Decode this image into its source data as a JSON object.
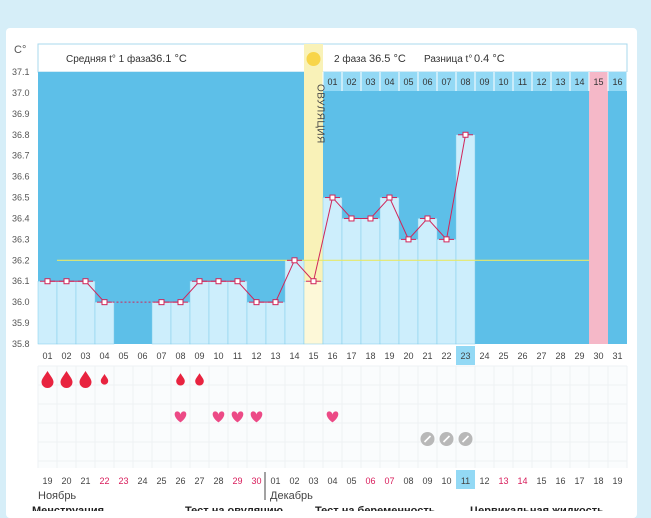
{
  "chart_data": {
    "type": "line",
    "unit_label": "C°",
    "header": {
      "phase1_label": "Средняя t° 1 фаза",
      "phase1_value": "36.1 °C",
      "phase2_label": "2 фаза",
      "phase2_value": "36.5 °C",
      "diff_label": "Разница t°",
      "diff_value": "0.4 °C"
    },
    "ylim": [
      35.8,
      37.1
    ],
    "yticks": [
      "37.1",
      "37.0",
      "36.9",
      "36.8",
      "36.7",
      "36.6",
      "36.5",
      "36.4",
      "36.3",
      "36.2",
      "36.1",
      "36.0",
      "35.9",
      "35.8"
    ],
    "cycle_days": [
      "01",
      "02",
      "03",
      "04",
      "05",
      "06",
      "07",
      "08",
      "09",
      "10",
      "11",
      "12",
      "13",
      "14",
      "15",
      "16",
      "17",
      "18",
      "19",
      "20",
      "21",
      "22",
      "23",
      "24",
      "25",
      "26",
      "27",
      "28",
      "29",
      "30",
      "31"
    ],
    "phase2_days": [
      "01",
      "02",
      "03",
      "04",
      "05",
      "06",
      "07",
      "08",
      "09",
      "10",
      "11",
      "12",
      "13",
      "14",
      "15",
      "16"
    ],
    "phase2_start_index": 15,
    "highlight_cycle_day_index": 22,
    "expected_period_phase2_index": 14,
    "ovulation_index": 14,
    "ovulation_label": "ОВУЛЯЦИЯ",
    "coverline": 36.2,
    "temperatures": [
      36.1,
      36.1,
      36.1,
      36.0,
      null,
      null,
      36.0,
      36.0,
      36.1,
      36.1,
      36.1,
      36.0,
      36.0,
      36.2,
      36.1,
      36.5,
      36.4,
      36.4,
      36.5,
      36.3,
      36.4,
      36.3,
      36.8,
      null,
      null,
      null,
      null,
      null,
      null,
      null,
      null
    ],
    "dotted_gap": [
      3,
      6
    ],
    "menstruation": [
      3,
      3,
      3,
      1,
      0,
      0,
      0,
      2,
      2,
      0,
      0,
      0,
      0,
      0,
      0,
      0,
      0,
      0,
      0,
      0,
      0,
      0,
      0,
      0,
      0,
      0,
      0,
      0,
      0,
      0,
      0
    ],
    "hearts": [
      7,
      9,
      10,
      11,
      15
    ],
    "tests": [
      20,
      21,
      22
    ],
    "calendar_days": [
      "19",
      "20",
      "21",
      "22",
      "23",
      "24",
      "25",
      "26",
      "27",
      "28",
      "29",
      "30",
      "01",
      "02",
      "03",
      "04",
      "05",
      "06",
      "07",
      "08",
      "09",
      "10",
      "11",
      "12",
      "13",
      "14",
      "15",
      "16",
      "17",
      "18",
      "19"
    ],
    "calendar_red": [
      3,
      4,
      10,
      11,
      17,
      18,
      24,
      25
    ],
    "calendar_highlight_index": 22,
    "month_labels": {
      "november": "Ноябрь",
      "december": "Декабрь"
    },
    "month_split_index": 12,
    "footer_labels": [
      "Менструация",
      "Тест на овуляцию",
      "Тест на беременность",
      "Цервикальная жидкость"
    ]
  },
  "colors": {
    "background": "#d6eef8",
    "panel": "#ffffff",
    "phase1": "#5dbfe8",
    "phase2": "#93d9f5",
    "bar": "#cdeefc",
    "line": "#d0265a",
    "ovulation": "#f9f2b8",
    "ovulation_sun": "#f8d54a",
    "coverline": "#e6e86a",
    "expected_period": "#f5b8c8",
    "highlight": "#93d9f5",
    "heart": "#ec4a86",
    "drop": "#e8233f",
    "test": "#b8b8b8",
    "red_text": "#d81b5a"
  }
}
